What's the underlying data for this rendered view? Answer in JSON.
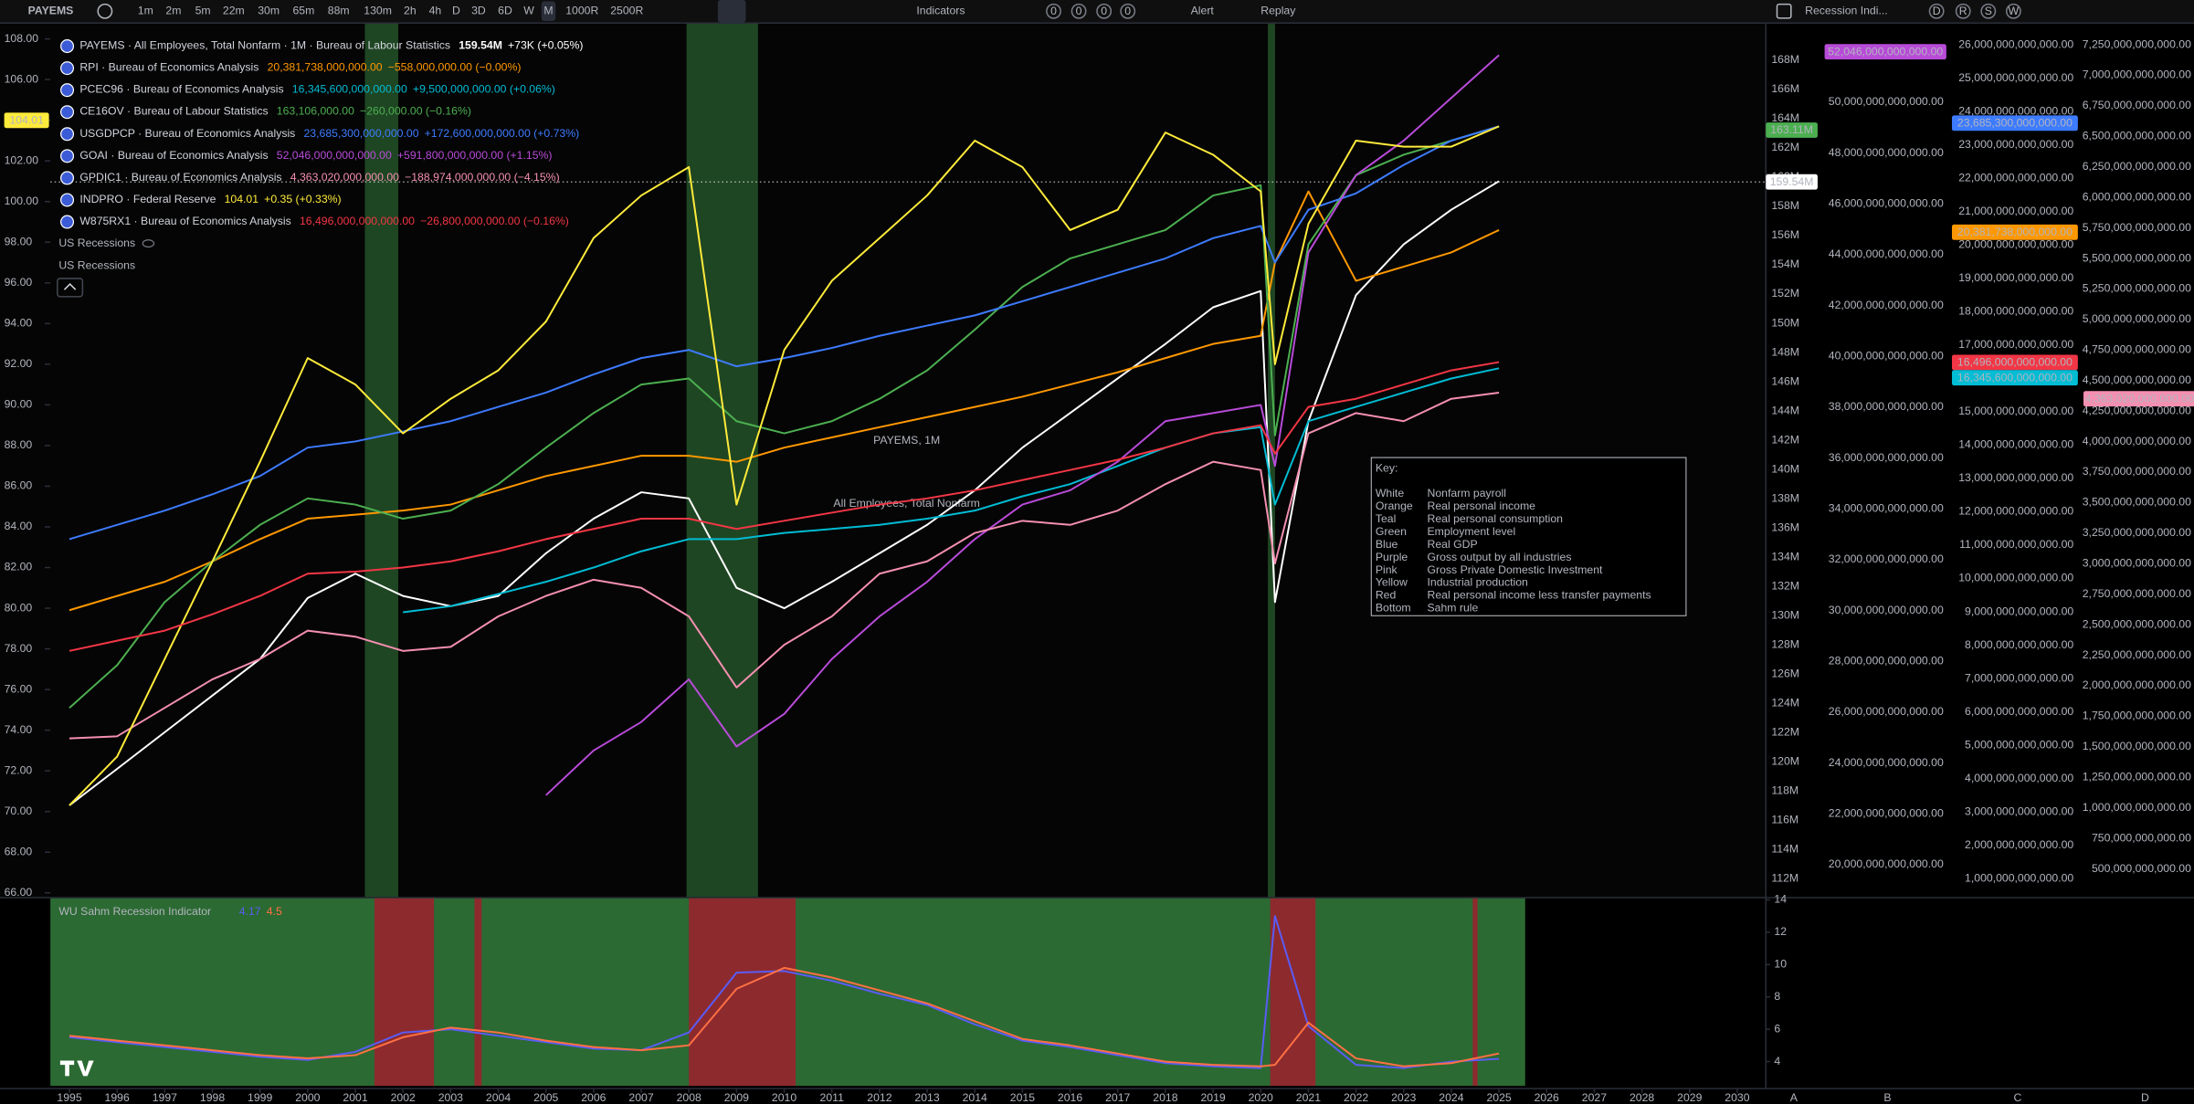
{
  "toolbar": {
    "symbol": "PAYEMS",
    "intervals": [
      "1m",
      "2m",
      "5m",
      "22m",
      "30m",
      "65m",
      "88m",
      "130m",
      "2h",
      "4h",
      "D",
      "3D",
      "6D",
      "W",
      "M",
      "1000R",
      "2500R"
    ],
    "indicators": "Indicators",
    "counters": [
      "0",
      "0",
      "0",
      "0"
    ],
    "alert": "Alert",
    "replay": "Replay",
    "recession": "Recession Indi...",
    "letters": [
      "D",
      "R",
      "S",
      "W"
    ]
  },
  "watermark": {
    "title": "PAYEMS, 1M",
    "subtitle": "All Employees, Total Nonfarm"
  },
  "overlays": [
    "US Recessions",
    "US Recessions"
  ],
  "key": {
    "title": "Key:",
    "rows": [
      [
        "White",
        "Nonfarm payroll"
      ],
      [
        "Orange",
        "Real personal income"
      ],
      [
        "Teal",
        "Real personal consumption"
      ],
      [
        "Green",
        "Employment level"
      ],
      [
        "Blue",
        "Real GDP"
      ],
      [
        "Purple",
        "Gross output by all industries"
      ],
      [
        "Pink",
        "Gross Private Domestic Investment"
      ],
      [
        "Yellow",
        "Industrial production"
      ],
      [
        "Red",
        "Real personal income less transfer payments"
      ],
      [
        "Bottom",
        "Sahm rule"
      ]
    ]
  },
  "chart_data": [
    {
      "type": "line",
      "x": [
        1995,
        1996,
        1997,
        1998,
        1999,
        2000,
        2001,
        2002,
        2003,
        2004,
        2005,
        2006,
        2007,
        2008,
        2009,
        2010,
        2011,
        2012,
        2013,
        2014,
        2015,
        2016,
        2017,
        2018,
        2019,
        2020,
        2020.3,
        2021,
        2022,
        2023,
        2024,
        2025
      ],
      "xlim": [
        1994.6,
        2030.6
      ],
      "ylim": [
        65.8,
        108.4
      ],
      "yticks": [
        {
          "value": 108,
          "label": "108.00"
        },
        {
          "value": 106,
          "label": "106.00"
        },
        {
          "value": 104,
          "label": "104.00"
        },
        {
          "value": 102,
          "label": "102.00"
        },
        {
          "value": 100,
          "label": "100.00"
        },
        {
          "value": 98,
          "label": "98.00"
        },
        {
          "value": 96,
          "label": "96.00"
        },
        {
          "value": 94,
          "label": "94.00"
        },
        {
          "value": 92,
          "label": "92.00"
        },
        {
          "value": 90,
          "label": "90.00"
        },
        {
          "value": 88,
          "label": "88.00"
        },
        {
          "value": 86,
          "label": "86.00"
        },
        {
          "value": 84,
          "label": "84.00"
        },
        {
          "value": 82,
          "label": "82.00"
        },
        {
          "value": 80,
          "label": "80.00"
        },
        {
          "value": 78,
          "label": "78.00"
        },
        {
          "value": 76,
          "label": "76.00"
        },
        {
          "value": 74,
          "label": "74.00"
        },
        {
          "value": 72,
          "label": "72.00"
        },
        {
          "value": 70,
          "label": "70.00"
        },
        {
          "value": 68,
          "label": "68.00"
        },
        {
          "value": 66,
          "label": "66.00"
        }
      ],
      "bands": [
        [
          2001.2,
          2001.9
        ],
        [
          2007.95,
          2009.45
        ],
        [
          2020.15,
          2020.3
        ]
      ],
      "band_color": "#1f4623",
      "series": [
        {
          "name": "PAYEMS · All Employees, Total Nonfarm · 1M · Bureau of Labour Statistics",
          "last_label": "159.54M",
          "change": "+73K (+0.05%)",
          "color": "#ffffff",
          "values": [
            70.3,
            72.1,
            73.9,
            75.7,
            77.5,
            80.5,
            81.7,
            80.6,
            80.1,
            80.6,
            82.7,
            84.4,
            85.7,
            85.4,
            81,
            80,
            81.3,
            82.7,
            84.1,
            85.8,
            87.9,
            89.6,
            91.3,
            93,
            94.8,
            95.6,
            80.3,
            89.2,
            95.4,
            97.9,
            99.6,
            101
          ]
        },
        {
          "name": "RPI · Bureau of Economics Analysis",
          "last_label": "20,381,738,000,000.00",
          "change": "−558,000,000.00 (−0.00%)",
          "color": "#ff9800",
          "values": [
            79.9,
            80.6,
            81.3,
            82.3,
            83.4,
            84.4,
            84.6,
            84.8,
            85.1,
            85.8,
            86.5,
            87,
            87.5,
            87.5,
            87.2,
            87.9,
            88.4,
            88.9,
            89.4,
            89.9,
            90.4,
            91,
            91.6,
            92.3,
            93,
            93.4,
            97,
            100.5,
            96.1,
            96.8,
            97.5,
            98.6
          ]
        },
        {
          "name": "PCEC96 · Bureau of Economics Analysis",
          "last_label": "16,345,600,000,000.00",
          "change": "+9,500,000,000.00 (+0.06%)",
          "color": "#00bcd4",
          "values": [
            null,
            null,
            null,
            null,
            null,
            null,
            null,
            79.8,
            80.1,
            80.7,
            81.3,
            82,
            82.8,
            83.4,
            83.4,
            83.7,
            83.9,
            84.1,
            84.4,
            84.8,
            85.5,
            86.1,
            87,
            87.9,
            88.6,
            88.9,
            85.1,
            89.2,
            89.9,
            90.6,
            91.3,
            91.8
          ]
        },
        {
          "name": "CE16OV · Bureau of Labour Statistics",
          "last_label": "163,106,000.00",
          "change": "−260,000.00 (−0.16%)",
          "color": "#4caf50",
          "values": [
            75.1,
            77.2,
            80.3,
            82.3,
            84.1,
            85.4,
            85.1,
            84.4,
            84.8,
            86.1,
            87.9,
            89.6,
            91,
            91.3,
            89.2,
            88.6,
            89.2,
            90.3,
            91.7,
            93.7,
            95.8,
            97.2,
            97.9,
            98.6,
            100.3,
            100.8,
            88.5,
            97.9,
            101.3,
            102.3,
            103,
            103.7
          ]
        },
        {
          "name": "USGDPCP · Bureau of Economics Analysis",
          "last_label": "23,685,300,000,000.00",
          "change": "+172,600,000,000.00 (+0.73%)",
          "color": "#3d7bff",
          "values": [
            83.4,
            84.1,
            84.8,
            85.6,
            86.5,
            87.9,
            88.2,
            88.7,
            89.2,
            89.9,
            90.6,
            91.5,
            92.3,
            92.7,
            91.9,
            92.3,
            92.8,
            93.4,
            93.9,
            94.4,
            95.1,
            95.8,
            96.5,
            97.2,
            98.2,
            98.8,
            97,
            99.6,
            100.4,
            101.8,
            103,
            103.7
          ]
        },
        {
          "name": "GOAI · Bureau of Economics Analysis",
          "last_label": "52,046,000,000,000.00",
          "change": "+591,800,000,000.00 (+1.15%)",
          "color": "#b84bd8",
          "values": [
            null,
            null,
            null,
            null,
            null,
            null,
            null,
            null,
            null,
            null,
            70.8,
            73,
            74.4,
            76.5,
            73.2,
            74.8,
            77.5,
            79.6,
            81.3,
            83.4,
            85.1,
            85.8,
            87.2,
            89.2,
            89.6,
            90,
            87,
            97.5,
            101.3,
            103,
            105.1,
            107.2
          ]
        },
        {
          "name": "GPDIC1 · Bureau of Economics Analysis",
          "last_label": "4,363,020,000,000.00",
          "change": "−188,974,000,000.00 (−4.15%)",
          "color": "#f48fb1",
          "values": [
            73.6,
            73.7,
            75.1,
            76.5,
            77.5,
            78.9,
            78.6,
            77.9,
            78.1,
            79.6,
            80.6,
            81.4,
            81,
            79.6,
            76.1,
            78.2,
            79.6,
            81.7,
            82.3,
            83.7,
            84.3,
            84.1,
            84.8,
            86.1,
            87.2,
            86.8,
            82.2,
            88.6,
            89.6,
            89.2,
            90.3,
            90.6
          ]
        },
        {
          "name": "INDPRO · Federal Reserve",
          "last_label": "104.01",
          "change": "+0.35 (+0.33%)",
          "color": "#ffeb3b",
          "values": [
            70.3,
            72.7,
            77.5,
            82.3,
            87.2,
            92.3,
            91,
            88.6,
            90.3,
            91.7,
            94.1,
            98.2,
            100.3,
            101.7,
            85.1,
            92.7,
            96.1,
            98.2,
            100.3,
            103,
            101.7,
            98.6,
            99.6,
            103.4,
            102.3,
            100.5,
            92,
            98.9,
            103,
            102.7,
            102.7,
            103.7
          ]
        },
        {
          "name": "W875RX1 · Bureau of Economics Analysis",
          "last_label": "16,496,000,000,000.00",
          "change": "−26,800,000,000.00 (−0.16%)",
          "color": "#f23645",
          "values": [
            77.9,
            78.4,
            78.9,
            79.7,
            80.6,
            81.7,
            81.8,
            82,
            82.3,
            82.8,
            83.4,
            83.9,
            84.4,
            84.4,
            83.9,
            84.3,
            84.7,
            85.1,
            85.4,
            85.8,
            86.3,
            86.8,
            87.3,
            87.9,
            88.6,
            89,
            87.6,
            89.9,
            90.3,
            91,
            91.7,
            92.1
          ]
        }
      ],
      "right_axes": [
        {
          "ticks": [
            "168M",
            "166M",
            "164M",
            "162M",
            "160M",
            "158M",
            "156M",
            "154M",
            "152M",
            "150M",
            "148M",
            "146M",
            "144M",
            "142M",
            "140M",
            "138M",
            "136M",
            "134M",
            "132M",
            "130M",
            "128M",
            "126M",
            "124M",
            "122M",
            "120M",
            "118M",
            "116M",
            "114M",
            "112M"
          ],
          "badges": [
            {
              "label": "163.11M",
              "color": "#4caf50"
            }
          ]
        },
        {
          "ticks": [
            "50,000,000,000,000.00",
            "48,000,000,000,000.00",
            "46,000,000,000,000.00",
            "44,000,000,000,000.00",
            "42,000,000,000,000.00",
            "40,000,000,000,000.00",
            "38,000,000,000,000.00",
            "36,000,000,000,000.00",
            "34,000,000,000,000.00",
            "32,000,000,000,000.00",
            "30,000,000,000,000.00",
            "28,000,000,000,000.00",
            "26,000,000,000,000.00",
            "24,000,000,000,000.00",
            "22,000,000,000,000.00",
            "20,000,000,000,000.00"
          ]
        },
        {
          "ticks": [
            "26,000,000,000,000.00",
            "25,000,000,000,000.00",
            "24,000,000,000,000.00",
            "23,000,000,000,000.00",
            "22,000,000,000,000.00",
            "21,000,000,000,000.00",
            "20,000,000,000,000.00",
            "19,000,000,000,000.00",
            "18,000,000,000,000.00",
            "17,000,000,000,000.00",
            "16,000,000,000,000.00",
            "15,000,000,000,000.00",
            "14,000,000,000,000.00",
            "13,000,000,000,000.00",
            "12,000,000,000,000.00",
            "11,000,000,000,000.00",
            "10,000,000,000,000.00",
            "9,000,000,000,000.00",
            "8,000,000,000,000.00",
            "7,000,000,000,000.00",
            "6,000,000,000,000.00",
            "5,000,000,000,000.00",
            "4,000,000,000,000.00",
            "3,000,000,000,000.00",
            "2,000,000,000,000.00",
            "1,000,000,000,000.00"
          ]
        },
        {
          "ticks": [
            "7,250,000,000,000.00",
            "7,000,000,000,000.00",
            "6,750,000,000,000.00",
            "6,500,000,000,000.00",
            "6,250,000,000,000.00",
            "6,000,000,000,000.00",
            "5,750,000,000,000.00",
            "5,500,000,000,000.00",
            "5,250,000,000,000.00",
            "5,000,000,000,000.00",
            "4,750,000,000,000.00",
            "4,500,000,000,000.00",
            "4,250,000,000,000.00",
            "4,000,000,000,000.00",
            "3,750,000,000,000.00",
            "3,500,000,000,000.00",
            "3,250,000,000,000.00",
            "3,000,000,000,000.00",
            "2,750,000,000,000.00",
            "2,500,000,000,000.00",
            "2,250,000,000,000.00",
            "2,000,000,000,000.00",
            "1,750,000,000,000.00",
            "1,500,000,000,000.00",
            "1,250,000,000,000.00",
            "1,000,000,000,000.00",
            "750,000,000,000.00",
            "500,000,000,000.00"
          ]
        }
      ]
    },
    {
      "type": "line",
      "title": "WU Sahm Recession Indicator",
      "x": [
        1995,
        1996,
        1997,
        1998,
        1999,
        2000,
        2001,
        2002,
        2003,
        2004,
        2005,
        2006,
        2007,
        2008,
        2009,
        2010,
        2011,
        2012,
        2013,
        2014,
        2015,
        2016,
        2017,
        2018,
        2019,
        2020,
        2020.3,
        2021,
        2022,
        2023,
        2024,
        2025
      ],
      "xlim": [
        1994.6,
        2030.6
      ],
      "ylim": [
        2.5,
        14.1
      ],
      "yticks": [
        14,
        12,
        10,
        8,
        6,
        4
      ],
      "xticks": [
        1995,
        1996,
        1997,
        1998,
        1999,
        2000,
        2001,
        2002,
        2003,
        2004,
        2005,
        2006,
        2007,
        2008,
        2009,
        2010,
        2011,
        2012,
        2013,
        2014,
        2015,
        2016,
        2017,
        2018,
        2019,
        2020,
        2021,
        2022,
        2023,
        2024,
        2025,
        2026,
        2027,
        2028,
        2029,
        2030
      ],
      "background": "#2c6a33",
      "bands": [
        [
          2001.4,
          2002.65
        ],
        [
          2003.5,
          2003.65
        ],
        [
          2008.0,
          2010.24
        ],
        [
          2020.2,
          2021.15
        ],
        [
          2024.45,
          2024.55
        ]
      ],
      "band_color": "#8d2a2e",
      "series": [
        {
          "last_label": "4.17",
          "color": "#5a5cf5",
          "values": [
            5.5,
            5.2,
            4.9,
            4.6,
            4.3,
            4.1,
            4.6,
            5.8,
            6.0,
            5.6,
            5.2,
            4.8,
            4.7,
            5.8,
            9.5,
            9.6,
            9.0,
            8.2,
            7.5,
            6.3,
            5.3,
            4.9,
            4.4,
            3.9,
            3.7,
            3.6,
            13.0,
            6.2,
            3.8,
            3.6,
            4.0,
            4.17
          ]
        },
        {
          "last_label": "4.5",
          "color": "#ff7043",
          "values": [
            5.6,
            5.3,
            5.0,
            4.7,
            4.4,
            4.2,
            4.4,
            5.5,
            6.1,
            5.8,
            5.3,
            4.9,
            4.7,
            5.0,
            8.5,
            9.8,
            9.2,
            8.4,
            7.6,
            6.5,
            5.4,
            5.0,
            4.5,
            4.0,
            3.8,
            3.7,
            3.8,
            6.4,
            4.2,
            3.7,
            3.9,
            4.5
          ]
        }
      ]
    }
  ],
  "footer_letters": [
    "A",
    "B",
    "C",
    "D"
  ]
}
